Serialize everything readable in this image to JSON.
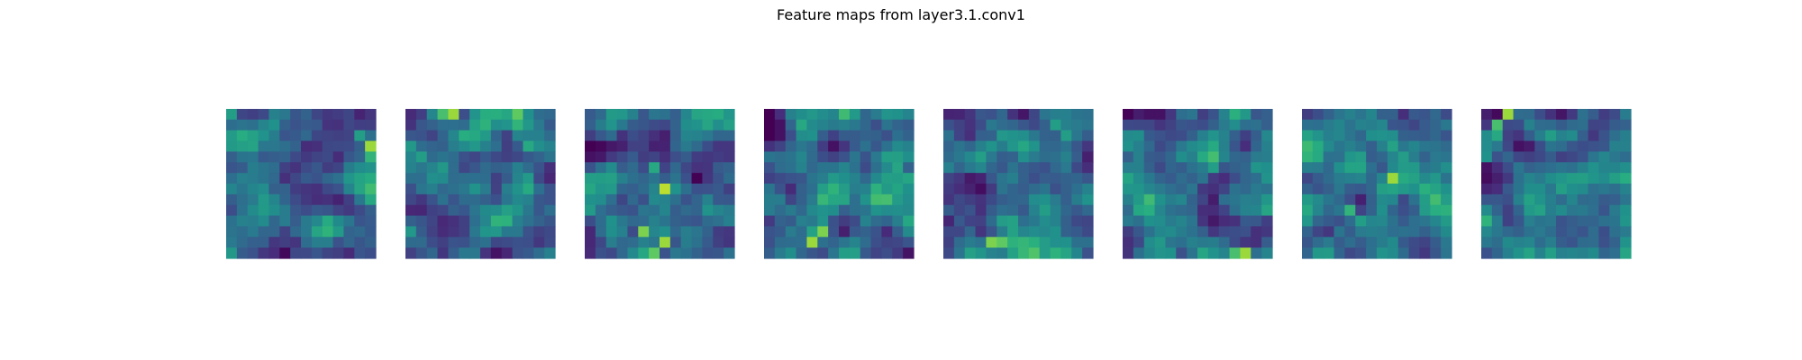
{
  "chart_data": {
    "type": "heatmap",
    "title": "Feature maps from layer3.1.conv1",
    "colormap": "viridis",
    "axes_visible": false,
    "grid": false,
    "value_range": [
      0,
      1
    ],
    "grid_size": [
      14,
      14
    ],
    "panel_count": 8,
    "panels": [
      {
        "name": "",
        "seed": 11,
        "hot_spots": [
          [
            1,
            4,
            0.5
          ],
          [
            2,
            12,
            0.55
          ],
          [
            3,
            13,
            0.85
          ],
          [
            4,
            13,
            0.65
          ],
          [
            0,
            0,
            0.55
          ]
        ]
      },
      {
        "name": "",
        "seed": 22,
        "hot_spots": [
          [
            0,
            4,
            0.85
          ],
          [
            0,
            3,
            0.7
          ],
          [
            3,
            11,
            0.6
          ],
          [
            4,
            1,
            0.55
          ]
        ]
      },
      {
        "name": "",
        "seed": 33,
        "hot_spots": [
          [
            7,
            7,
            0.9
          ],
          [
            12,
            7,
            0.85
          ],
          [
            11,
            5,
            0.8
          ],
          [
            13,
            6,
            0.75
          ],
          [
            5,
            6,
            0.6
          ]
        ]
      },
      {
        "name": "",
        "seed": 44,
        "hot_spots": [
          [
            12,
            4,
            0.85
          ],
          [
            11,
            5,
            0.8
          ],
          [
            1,
            3,
            0.6
          ],
          [
            2,
            4,
            0.5
          ]
        ]
      },
      {
        "name": "",
        "seed": 55,
        "hot_spots": [
          [
            12,
            4,
            0.8
          ],
          [
            12,
            5,
            0.75
          ],
          [
            1,
            10,
            0.55
          ],
          [
            2,
            11,
            0.55
          ]
        ]
      },
      {
        "name": "",
        "seed": 66,
        "hot_spots": [
          [
            13,
            11,
            0.85
          ],
          [
            13,
            10,
            0.7
          ],
          [
            5,
            8,
            0.55
          ],
          [
            13,
            4,
            0.5
          ]
        ]
      },
      {
        "name": "",
        "seed": 77,
        "hot_spots": [
          [
            6,
            8,
            0.85
          ],
          [
            9,
            4,
            0.65
          ],
          [
            10,
            5,
            0.55
          ]
        ]
      },
      {
        "name": "",
        "seed": 88,
        "hot_spots": [
          [
            0,
            2,
            0.85
          ],
          [
            1,
            1,
            0.7
          ],
          [
            2,
            1,
            0.6
          ],
          [
            4,
            0,
            0.5
          ],
          [
            5,
            10,
            0.5
          ]
        ]
      }
    ]
  }
}
